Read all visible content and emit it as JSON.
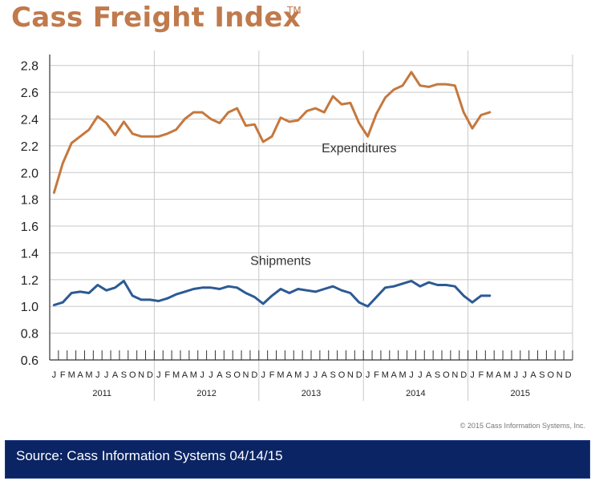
{
  "colors": {
    "title": "#c07a4c",
    "expenditures": "#c5783e",
    "shipments": "#2c5a94",
    "grid": "#c8c8c8",
    "axis": "#333333",
    "source_bar": "#0b2463"
  },
  "header": {
    "title": "Cass Freight Index",
    "trademark": "TM"
  },
  "footer": {
    "copyright": "© 2015 Cass Information Systems, Inc.",
    "source": "Source: Cass Information Systems 04/14/15"
  },
  "chart_data": {
    "type": "line",
    "title": "Cass Freight Index",
    "xlabel": "",
    "ylabel": "",
    "ylim": [
      0.6,
      2.9
    ],
    "yticks": [
      "0.6",
      "0.8",
      "1.0",
      "1.2",
      "1.4",
      "1.6",
      "1.8",
      "2.0",
      "2.2",
      "2.4",
      "2.6",
      "2.8"
    ],
    "ytick_values": [
      0.6,
      0.8,
      1.0,
      1.2,
      1.4,
      1.6,
      1.8,
      2.0,
      2.2,
      2.4,
      2.6,
      2.8
    ],
    "month_letters": [
      "J",
      "F",
      "M",
      "A",
      "M",
      "J",
      "J",
      "A",
      "S",
      "O",
      "N",
      "D"
    ],
    "years": [
      "2011",
      "2012",
      "2013",
      "2014",
      "2015"
    ],
    "grid": true,
    "legend": "inline-labels",
    "series": [
      {
        "name": "Expenditures",
        "label_month_index": 35,
        "label_value": 2.15,
        "values": [
          1.85,
          2.07,
          2.22,
          2.27,
          2.32,
          2.42,
          2.37,
          2.28,
          2.38,
          2.29,
          2.27,
          2.27,
          2.27,
          2.29,
          2.32,
          2.4,
          2.45,
          2.45,
          2.4,
          2.37,
          2.45,
          2.48,
          2.35,
          2.36,
          2.23,
          2.27,
          2.41,
          2.38,
          2.39,
          2.46,
          2.48,
          2.45,
          2.57,
          2.51,
          2.52,
          2.37,
          2.27,
          2.44,
          2.56,
          2.62,
          2.65,
          2.75,
          2.65,
          2.64,
          2.66,
          2.66,
          2.65,
          2.45,
          2.33,
          2.43,
          2.45
        ]
      },
      {
        "name": "Shipments",
        "label_month_index": 26,
        "label_value": 1.31,
        "values": [
          1.01,
          1.03,
          1.1,
          1.11,
          1.1,
          1.16,
          1.12,
          1.14,
          1.19,
          1.08,
          1.05,
          1.05,
          1.04,
          1.06,
          1.09,
          1.11,
          1.13,
          1.14,
          1.14,
          1.13,
          1.15,
          1.14,
          1.1,
          1.07,
          1.02,
          1.08,
          1.13,
          1.1,
          1.13,
          1.12,
          1.11,
          1.13,
          1.15,
          1.12,
          1.1,
          1.03,
          1.0,
          1.07,
          1.14,
          1.15,
          1.17,
          1.19,
          1.15,
          1.18,
          1.16,
          1.16,
          1.15,
          1.08,
          1.03,
          1.08,
          1.08
        ]
      }
    ]
  }
}
